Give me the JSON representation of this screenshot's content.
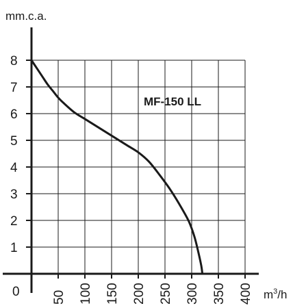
{
  "chart_data": {
    "type": "line",
    "title": "",
    "annotation": "MF-150 LL",
    "ylabel": "mm.c.a.",
    "xlabel_main": "m",
    "xlabel_sup": "3",
    "xlabel_tail": "/h",
    "origin_label": "0",
    "xlim": [
      0,
      400
    ],
    "ylim": [
      0,
      8
    ],
    "x_ticks": [
      "50",
      "100",
      "150",
      "200",
      "250",
      "300",
      "350",
      "400"
    ],
    "y_ticks": [
      "1",
      "2",
      "3",
      "4",
      "5",
      "6",
      "7",
      "8"
    ],
    "grid": true,
    "colors": {
      "curve": "#1a1a1a",
      "grid": "#1a1a1a",
      "background": "#ffffff"
    },
    "series": [
      {
        "x": [
          0,
          10,
          20,
          30,
          40,
          50,
          60,
          80,
          100,
          120,
          140,
          160,
          180,
          200,
          220,
          240,
          260,
          280,
          295,
          305,
          312,
          318,
          320
        ],
        "y": [
          8.0,
          7.7,
          7.4,
          7.1,
          6.85,
          6.6,
          6.4,
          6.05,
          5.8,
          5.55,
          5.3,
          5.05,
          4.8,
          4.55,
          4.2,
          3.7,
          3.15,
          2.5,
          1.95,
          1.4,
          0.85,
          0.3,
          0.0
        ]
      }
    ]
  }
}
